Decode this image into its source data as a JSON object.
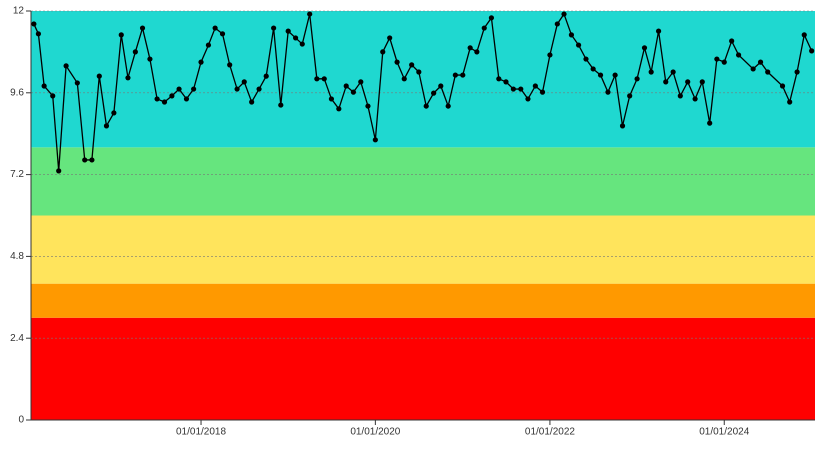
{
  "chart_data": {
    "type": "line",
    "x": [
      "2016-02-01",
      "2016-02-20",
      "2016-03-15",
      "2016-04-20",
      "2016-05-15",
      "2016-06-15",
      "2016-08-01",
      "2016-09-01",
      "2016-10-01",
      "2016-11-01",
      "2016-12-01",
      "2017-01-01",
      "2017-02-01",
      "2017-03-01",
      "2017-04-01",
      "2017-05-01",
      "2017-06-01",
      "2017-07-01",
      "2017-08-01",
      "2017-09-01",
      "2017-10-01",
      "2017-11-01",
      "2017-12-01",
      "2018-01-01",
      "2018-02-01",
      "2018-03-01",
      "2018-04-01",
      "2018-05-01",
      "2018-06-01",
      "2018-07-01",
      "2018-08-01",
      "2018-09-01",
      "2018-10-01",
      "2018-11-01",
      "2018-12-01",
      "2019-01-01",
      "2019-02-01",
      "2019-03-01",
      "2019-04-01",
      "2019-05-01",
      "2019-06-01",
      "2019-07-01",
      "2019-08-01",
      "2019-09-01",
      "2019-10-01",
      "2019-11-01",
      "2019-12-01",
      "2020-01-01",
      "2020-02-01",
      "2020-03-01",
      "2020-04-01",
      "2020-05-01",
      "2020-06-01",
      "2020-07-01",
      "2020-08-01",
      "2020-09-01",
      "2020-10-01",
      "2020-11-01",
      "2020-12-01",
      "2021-01-01",
      "2021-02-01",
      "2021-03-01",
      "2021-04-01",
      "2021-05-01",
      "2021-06-01",
      "2021-07-01",
      "2021-08-01",
      "2021-09-01",
      "2021-10-01",
      "2021-11-01",
      "2021-12-01",
      "2022-01-01",
      "2022-02-01",
      "2022-03-01",
      "2022-04-01",
      "2022-05-01",
      "2022-06-01",
      "2022-07-01",
      "2022-08-01",
      "2022-09-01",
      "2022-10-01",
      "2022-11-01",
      "2022-12-01",
      "2023-01-01",
      "2023-02-01",
      "2023-03-01",
      "2023-04-01",
      "2023-05-01",
      "2023-06-01",
      "2023-07-01",
      "2023-08-01",
      "2023-09-01",
      "2023-10-01",
      "2023-11-01",
      "2023-12-01",
      "2024-01-01",
      "2024-02-01",
      "2024-03-01",
      "2024-05-01",
      "2024-06-01",
      "2024-07-01",
      "2024-09-01",
      "2024-10-01",
      "2024-11-01",
      "2024-12-01",
      "2025-01-01"
    ],
    "values": [
      11.62,
      11.33,
      9.8,
      9.51,
      7.31,
      10.39,
      9.89,
      7.63,
      7.63,
      10.09,
      8.63,
      9.01,
      11.3,
      10.04,
      10.8,
      11.5,
      10.59,
      9.42,
      9.33,
      9.51,
      9.71,
      9.42,
      9.71,
      10.5,
      11.0,
      11.5,
      11.33,
      10.42,
      9.71,
      9.92,
      9.33,
      9.71,
      10.09,
      11.5,
      9.24,
      11.41,
      11.21,
      11.03,
      11.91,
      10.01,
      10.01,
      9.42,
      9.13,
      9.8,
      9.62,
      9.92,
      9.21,
      8.22,
      10.8,
      11.21,
      10.5,
      10.01,
      10.42,
      10.21,
      9.21,
      9.59,
      9.8,
      9.21,
      10.12,
      10.12,
      10.92,
      10.8,
      11.5,
      11.8,
      10.01,
      9.92,
      9.71,
      9.71,
      9.42,
      9.8,
      9.62,
      10.71,
      11.62,
      11.91,
      11.3,
      11.0,
      10.59,
      10.3,
      10.12,
      9.62,
      10.12,
      8.63,
      9.51,
      10.01,
      10.92,
      10.21,
      11.41,
      9.92,
      10.21,
      9.51,
      9.92,
      9.42,
      9.92,
      8.71,
      10.59,
      10.5,
      11.12,
      10.71,
      10.3,
      10.5,
      10.21,
      9.8,
      9.33,
      10.21,
      11.3,
      10.83
    ],
    "color": "#000000",
    "bands": [
      {
        "from": 0,
        "to": 3,
        "color": "#ff0000"
      },
      {
        "from": 3,
        "to": 4,
        "color": "#ff9900"
      },
      {
        "from": 4,
        "to": 6,
        "color": "#ffe45c"
      },
      {
        "from": 6,
        "to": 8,
        "color": "#66e57e"
      },
      {
        "from": 8,
        "to": 12,
        "color": "#1fd8d0"
      }
    ],
    "xlim": [
      "2016-01-20",
      "2025-01-15"
    ],
    "xticks": [
      {
        "value": "2018-01-01",
        "label": "01/01/2018"
      },
      {
        "value": "2020-01-01",
        "label": "01/01/2020"
      },
      {
        "value": "2022-01-01",
        "label": "01/01/2022"
      },
      {
        "value": "2024-01-01",
        "label": "01/01/2024"
      }
    ],
    "ylim": [
      0,
      12
    ],
    "yticks": [
      0,
      2.4,
      4.8,
      7.2,
      9.6,
      12
    ],
    "grid": true
  }
}
